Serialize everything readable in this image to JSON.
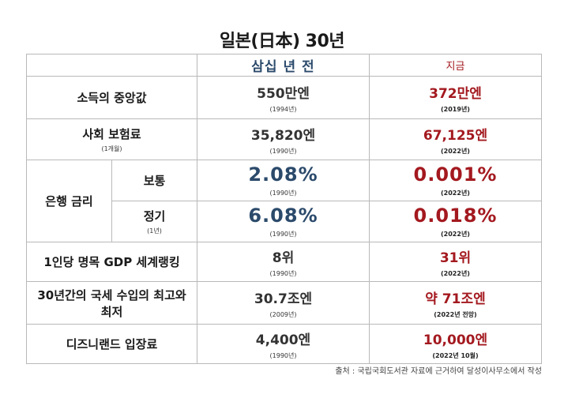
{
  "title": "일본(日本) 30년",
  "header": {
    "then": "삼십 년 전",
    "now": "지금"
  },
  "rows": [
    {
      "label": "소득의 중앙값",
      "then_value": "550만엔",
      "then_year": "(1994년)",
      "now_value": "372만엔",
      "now_year": "(2019년)"
    },
    {
      "label": "사회 보험료",
      "sub": "(1개월)",
      "then_value": "35,820엔",
      "then_year": "(1990년)",
      "now_value": "67,125엔",
      "now_year": "(2022년)"
    },
    {
      "label": "1인당 명목 GDP 세계랭킹",
      "then_value": "8위",
      "then_year": "(1990년)",
      "now_value": "31위",
      "now_year": "(2022년)"
    },
    {
      "label": "30년간의 국세 수입의 최고와 최저",
      "then_value": "30.7조엔",
      "then_year": "(2009년)",
      "now_value": "약 71조엔",
      "now_year": "(2022년 전망)"
    },
    {
      "label": "디즈니랜드 입장료",
      "then_value": "4,400엔",
      "then_year": "(1990년)",
      "now_value": "10,000엔",
      "now_year": "(2022년 10월)"
    }
  ],
  "bank_rate": {
    "label": "은행 금리",
    "regular": {
      "label": "보통",
      "then_value": "2.08%",
      "then_year": "(1990년)",
      "now_value": "0.001%",
      "now_year": "(2022년)"
    },
    "fixed": {
      "label": "정기",
      "sub": "(1년)",
      "then_value": "6.08%",
      "then_year": "(1990년)",
      "now_value": "0.018%",
      "now_year": "(2022년)"
    }
  },
  "source": "출처 : 국립국회도서관 자료에 근거하여 달성이사무소에서 작성"
}
